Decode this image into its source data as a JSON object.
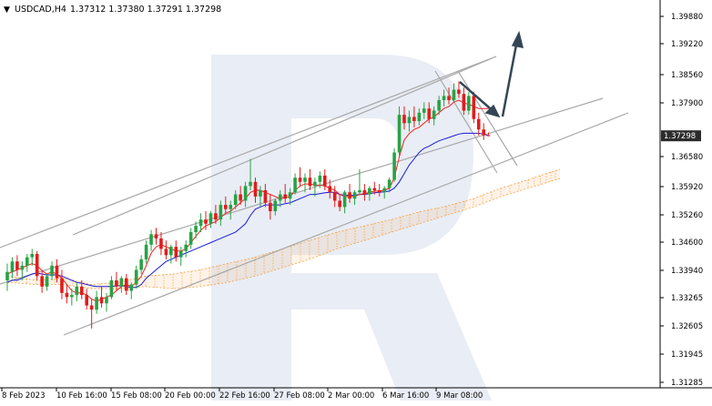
{
  "header": {
    "symbol_label": "USDCAD,H4",
    "ohlc_label": "1.37312 1.37380 1.37291 1.37298"
  },
  "price_axis": {
    "ticks": [
      "1.39880",
      "1.39220",
      "1.38560",
      "1.37900",
      "1.36580",
      "1.35920",
      "1.35260",
      "1.34600",
      "1.33940",
      "1.33265",
      "1.32605",
      "1.31945",
      "1.31285"
    ],
    "current_price": "1.37298"
  },
  "time_axis": {
    "ticks": [
      "8 Feb 2023",
      "10 Feb 16:00",
      "15 Feb 08:00",
      "20 Feb 00:00",
      "22 Feb 16:00",
      "27 Feb 08:00",
      "2 Mar 00:00",
      "6 Mar 16:00",
      "9 Mar 08:00"
    ]
  },
  "colors": {
    "bull": "#27a344",
    "bear": "#e31b1b",
    "tenkan": "#ee1d1d",
    "kijun": "#1a1ad6",
    "cloud": "#f5a040",
    "channel": "#a8a8a8",
    "arrow": "#344655",
    "watermark": "#e9edf5",
    "price_tag_bg": "#2b2b2b"
  },
  "chart_data": {
    "type": "candlestick",
    "symbol": "USDCAD",
    "timeframe": "H4",
    "ohlc_last": {
      "open": 1.37312,
      "high": 1.3738,
      "low": 1.37291,
      "close": 1.37298
    },
    "ylim": [
      1.31285,
      1.4054
    ],
    "x_tick_labels": [
      "8 Feb 2023",
      "10 Feb 16:00",
      "15 Feb 08:00",
      "20 Feb 00:00",
      "22 Feb 16:00",
      "27 Feb 08:00",
      "2 Mar 00:00",
      "6 Mar 16:00",
      "9 Mar 08:00"
    ],
    "candles": [
      [
        1.3385,
        1.3425,
        1.336,
        1.3405
      ],
      [
        1.3405,
        1.344,
        1.339,
        1.343
      ],
      [
        1.343,
        1.3445,
        1.3395,
        1.341
      ],
      [
        1.341,
        1.343,
        1.3385,
        1.342
      ],
      [
        1.342,
        1.3448,
        1.3405,
        1.344
      ],
      [
        1.344,
        1.346,
        1.342,
        1.3448
      ],
      [
        1.3448,
        1.3455,
        1.3385,
        1.3395
      ],
      [
        1.3395,
        1.341,
        1.3355,
        1.337
      ],
      [
        1.337,
        1.34,
        1.336,
        1.3395
      ],
      [
        1.3395,
        1.343,
        1.3385,
        1.342
      ],
      [
        1.342,
        1.3435,
        1.338,
        1.339
      ],
      [
        1.339,
        1.341,
        1.334,
        1.3355
      ],
      [
        1.3355,
        1.3375,
        1.333,
        1.3345
      ],
      [
        1.3345,
        1.3365,
        1.3325,
        1.335
      ],
      [
        1.335,
        1.338,
        1.3335,
        1.337
      ],
      [
        1.337,
        1.3385,
        1.334,
        1.335
      ],
      [
        1.335,
        1.3365,
        1.3315,
        1.3325
      ],
      [
        1.3325,
        1.334,
        1.327,
        1.3315
      ],
      [
        1.3315,
        1.336,
        1.3305,
        1.3345
      ],
      [
        1.3345,
        1.337,
        1.332,
        1.333
      ],
      [
        1.333,
        1.3355,
        1.331,
        1.3345
      ],
      [
        1.3345,
        1.3395,
        1.334,
        1.3385
      ],
      [
        1.3385,
        1.3405,
        1.336,
        1.337
      ],
      [
        1.337,
        1.3395,
        1.3355,
        1.339
      ],
      [
        1.339,
        1.34,
        1.335,
        1.336
      ],
      [
        1.336,
        1.338,
        1.334,
        1.3375
      ],
      [
        1.3375,
        1.342,
        1.3365,
        1.341
      ],
      [
        1.341,
        1.3445,
        1.34,
        1.3435
      ],
      [
        1.3435,
        1.348,
        1.3425,
        1.347
      ],
      [
        1.347,
        1.3505,
        1.3455,
        1.3495
      ],
      [
        1.3495,
        1.351,
        1.347,
        1.3485
      ],
      [
        1.3485,
        1.35,
        1.3445,
        1.346
      ],
      [
        1.346,
        1.348,
        1.3435,
        1.3445
      ],
      [
        1.3445,
        1.347,
        1.3425,
        1.3465
      ],
      [
        1.3465,
        1.348,
        1.343,
        1.344
      ],
      [
        1.344,
        1.3465,
        1.342,
        1.3455
      ],
      [
        1.3455,
        1.348,
        1.344,
        1.347
      ],
      [
        1.347,
        1.351,
        1.346,
        1.35
      ],
      [
        1.35,
        1.3525,
        1.3485,
        1.3515
      ],
      [
        1.3515,
        1.3545,
        1.35,
        1.353
      ],
      [
        1.353,
        1.355,
        1.3505,
        1.352
      ],
      [
        1.352,
        1.355,
        1.351,
        1.3545
      ],
      [
        1.3545,
        1.3565,
        1.352,
        1.353
      ],
      [
        1.353,
        1.3575,
        1.3515,
        1.3565
      ],
      [
        1.3565,
        1.3585,
        1.3545,
        1.3555
      ],
      [
        1.3555,
        1.3575,
        1.353,
        1.3565
      ],
      [
        1.3565,
        1.36,
        1.3555,
        1.359
      ],
      [
        1.359,
        1.361,
        1.3565,
        1.3575
      ],
      [
        1.3575,
        1.362,
        1.356,
        1.361
      ],
      [
        1.361,
        1.3675,
        1.36,
        1.362
      ],
      [
        1.362,
        1.363,
        1.357,
        1.3585
      ],
      [
        1.3585,
        1.361,
        1.356,
        1.36
      ],
      [
        1.36,
        1.3615,
        1.356,
        1.357
      ],
      [
        1.357,
        1.359,
        1.353,
        1.355
      ],
      [
        1.355,
        1.358,
        1.354,
        1.3575
      ],
      [
        1.3575,
        1.36,
        1.356,
        1.359
      ],
      [
        1.359,
        1.3615,
        1.357,
        1.358
      ],
      [
        1.358,
        1.3605,
        1.3565,
        1.3595
      ],
      [
        1.3595,
        1.364,
        1.359,
        1.363
      ],
      [
        1.363,
        1.3655,
        1.361,
        1.362
      ],
      [
        1.362,
        1.364,
        1.3595,
        1.363
      ],
      [
        1.363,
        1.365,
        1.36,
        1.361
      ],
      [
        1.361,
        1.363,
        1.3585,
        1.362
      ],
      [
        1.362,
        1.3645,
        1.3605,
        1.3635
      ],
      [
        1.3635,
        1.365,
        1.36,
        1.361
      ],
      [
        1.361,
        1.3625,
        1.358,
        1.3595
      ],
      [
        1.3595,
        1.361,
        1.356,
        1.3575
      ],
      [
        1.3575,
        1.359,
        1.355,
        1.356
      ],
      [
        1.356,
        1.36,
        1.3545,
        1.3595
      ],
      [
        1.3595,
        1.3615,
        1.357,
        1.358
      ],
      [
        1.358,
        1.36,
        1.3565,
        1.3595
      ],
      [
        1.3595,
        1.365,
        1.359,
        1.36
      ],
      [
        1.36,
        1.3615,
        1.3575,
        1.359
      ],
      [
        1.359,
        1.361,
        1.3575,
        1.3605
      ],
      [
        1.3605,
        1.362,
        1.359,
        1.36
      ],
      [
        1.36,
        1.3615,
        1.3585,
        1.3595
      ],
      [
        1.3595,
        1.361,
        1.358,
        1.3605
      ],
      [
        1.3605,
        1.363,
        1.3595,
        1.3625
      ],
      [
        1.3625,
        1.37,
        1.362,
        1.369
      ],
      [
        1.369,
        1.38,
        1.368,
        1.378
      ],
      [
        1.378,
        1.38,
        1.3745,
        1.376
      ],
      [
        1.376,
        1.379,
        1.374,
        1.3775
      ],
      [
        1.3775,
        1.38,
        1.375,
        1.3765
      ],
      [
        1.3765,
        1.3795,
        1.3755,
        1.3785
      ],
      [
        1.3785,
        1.381,
        1.377,
        1.3795
      ],
      [
        1.3795,
        1.381,
        1.376,
        1.377
      ],
      [
        1.377,
        1.38,
        1.3755,
        1.379
      ],
      [
        1.379,
        1.3825,
        1.378,
        1.3815
      ],
      [
        1.3815,
        1.384,
        1.38,
        1.3825
      ],
      [
        1.3825,
        1.3845,
        1.3805,
        1.3815
      ],
      [
        1.3815,
        1.3855,
        1.381,
        1.384
      ],
      [
        1.384,
        1.386,
        1.382,
        1.383
      ],
      [
        1.383,
        1.3845,
        1.378,
        1.379
      ],
      [
        1.379,
        1.3835,
        1.378,
        1.3825
      ],
      [
        1.3825,
        1.3835,
        1.376,
        1.377
      ],
      [
        1.377,
        1.3785,
        1.373,
        1.3745
      ],
      [
        1.3745,
        1.376,
        1.372,
        1.3731
      ],
      [
        1.37312,
        1.3738,
        1.37291,
        1.37298
      ]
    ],
    "tenkan": [
      1.34,
      1.3405,
      1.341,
      1.3415,
      1.342,
      1.3425,
      1.342,
      1.3408,
      1.34,
      1.3405,
      1.34,
      1.339,
      1.3375,
      1.336,
      1.3355,
      1.3355,
      1.335,
      1.334,
      1.3335,
      1.334,
      1.3345,
      1.335,
      1.336,
      1.337,
      1.3375,
      1.337,
      1.338,
      1.3395,
      1.342,
      1.345,
      1.3465,
      1.347,
      1.3465,
      1.346,
      1.3455,
      1.3455,
      1.346,
      1.3475,
      1.349,
      1.3505,
      1.3515,
      1.352,
      1.3525,
      1.3535,
      1.3545,
      1.355,
      1.356,
      1.357,
      1.358,
      1.3595,
      1.36,
      1.36,
      1.3595,
      1.359,
      1.3585,
      1.358,
      1.3582,
      1.3585,
      1.36,
      1.361,
      1.3615,
      1.3615,
      1.3612,
      1.3612,
      1.361,
      1.3605,
      1.36,
      1.359,
      1.3585,
      1.3585,
      1.3585,
      1.359,
      1.3592,
      1.3595,
      1.3598,
      1.3598,
      1.36,
      1.3605,
      1.363,
      1.368,
      1.372,
      1.3735,
      1.3745,
      1.375,
      1.376,
      1.377,
      1.3775,
      1.3785,
      1.3795,
      1.38,
      1.381,
      1.3815,
      1.3808,
      1.3805,
      1.38,
      1.3795,
      1.3795,
      1.3795
    ],
    "kijun": [
      1.338,
      1.3385,
      1.3385,
      1.339,
      1.3395,
      1.34,
      1.3402,
      1.34,
      1.3398,
      1.3398,
      1.3398,
      1.3395,
      1.339,
      1.3385,
      1.338,
      1.3378,
      1.3375,
      1.3372,
      1.337,
      1.337,
      1.337,
      1.337,
      1.3372,
      1.3372,
      1.337,
      1.3368,
      1.3368,
      1.3375,
      1.339,
      1.34,
      1.341,
      1.342,
      1.343,
      1.3435,
      1.344,
      1.3445,
      1.345,
      1.3455,
      1.346,
      1.3465,
      1.347,
      1.3475,
      1.348,
      1.3485,
      1.349,
      1.3495,
      1.35,
      1.351,
      1.352,
      1.354,
      1.3555,
      1.356,
      1.3565,
      1.3565,
      1.3565,
      1.3565,
      1.3568,
      1.357,
      1.3575,
      1.358,
      1.3585,
      1.359,
      1.359,
      1.3592,
      1.3594,
      1.3595,
      1.3595,
      1.359,
      1.3588,
      1.3588,
      1.3588,
      1.359,
      1.359,
      1.3592,
      1.3594,
      1.3595,
      1.3596,
      1.3598,
      1.3605,
      1.362,
      1.364,
      1.366,
      1.3675,
      1.369,
      1.37,
      1.3705,
      1.3712,
      1.3718,
      1.3722,
      1.3726,
      1.373,
      1.3734,
      1.3736,
      1.3736,
      1.3736,
      1.3736,
      1.3734,
      1.373
    ],
    "cloud": {
      "upper": [
        [
          8,
          1.3395
        ],
        [
          40,
          1.3385
        ],
        [
          70,
          1.339
        ],
        [
          100,
          1.3375
        ],
        [
          130,
          1.338
        ],
        [
          160,
          1.3395
        ],
        [
          190,
          1.34
        ],
        [
          220,
          1.341
        ],
        [
          250,
          1.3425
        ],
        [
          280,
          1.344
        ],
        [
          310,
          1.346
        ],
        [
          340,
          1.348
        ],
        [
          370,
          1.35
        ],
        [
          400,
          1.3515
        ],
        [
          430,
          1.353
        ],
        [
          460,
          1.3548
        ],
        [
          490,
          1.3562
        ],
        [
          520,
          1.358
        ],
        [
          550,
          1.3605
        ],
        [
          580,
          1.3625
        ],
        [
          600,
          1.364
        ],
        [
          615,
          1.365
        ]
      ],
      "lower": [
        [
          8,
          1.338
        ],
        [
          40,
          1.3375
        ],
        [
          70,
          1.3375
        ],
        [
          100,
          1.3365
        ],
        [
          130,
          1.3365
        ],
        [
          160,
          1.337
        ],
        [
          190,
          1.3365
        ],
        [
          220,
          1.337
        ],
        [
          250,
          1.338
        ],
        [
          280,
          1.3395
        ],
        [
          310,
          1.3415
        ],
        [
          340,
          1.3435
        ],
        [
          370,
          1.346
        ],
        [
          400,
          1.348
        ],
        [
          430,
          1.35
        ],
        [
          460,
          1.352
        ],
        [
          490,
          1.354
        ],
        [
          520,
          1.356
        ],
        [
          550,
          1.3585
        ],
        [
          580,
          1.3605
        ],
        [
          600,
          1.3618
        ],
        [
          615,
          1.3628
        ]
      ]
    }
  }
}
